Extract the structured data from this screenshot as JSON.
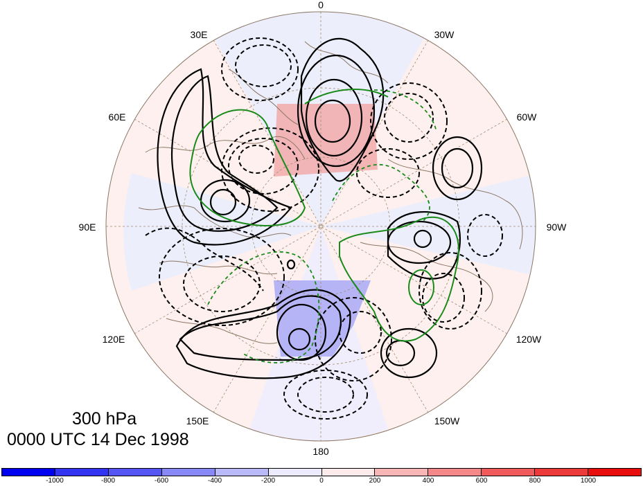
{
  "title": {
    "level": "300 hPa",
    "time": "0000 UTC 14 Dec 1998"
  },
  "longitude_labels": [
    "0",
    "30W",
    "60W",
    "90W",
    "120W",
    "150W",
    "180",
    "150E",
    "120E",
    "90E",
    "60E",
    "30E"
  ],
  "colorbar": {
    "tick_labels": [
      "-1000",
      "-800",
      "-600",
      "-400",
      "-200",
      "0",
      "200",
      "400",
      "600",
      "800",
      "1000"
    ],
    "colors": [
      "#0000f0",
      "#3333f2",
      "#5555f4",
      "#8888f7",
      "#b9b9fa",
      "#ebebfd",
      "#fdebeb",
      "#f7b5b5",
      "#f48888",
      "#f05a5a",
      "#ec3a3a",
      "#e80e0e"
    ]
  },
  "colors": {
    "positive_contour": "#000000",
    "negative_contour": "#000000",
    "green_contour": "#1a8a1a",
    "coastline": "#8b7765",
    "grid": "#a08a70"
  }
}
